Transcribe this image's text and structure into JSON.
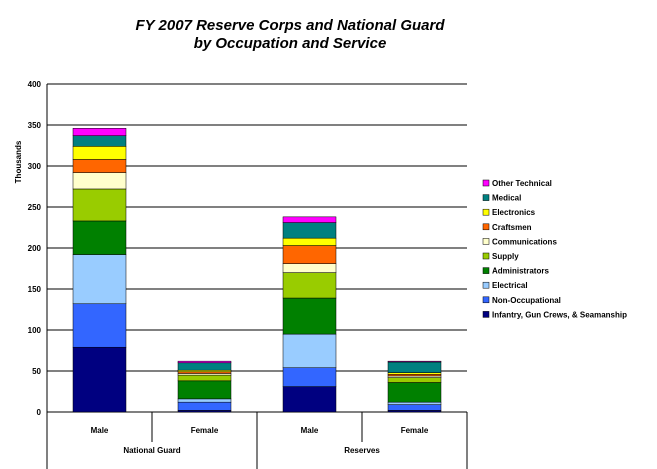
{
  "chart_data": {
    "type": "bar",
    "stacked": true,
    "title": [
      "FY 2007 Reserve Corps and National Guard",
      "by Occupation and Service"
    ],
    "ylabel": "Thousands",
    "xlabel": "",
    "ylim": [
      0,
      400
    ],
    "yticks": [
      0,
      50,
      100,
      150,
      200,
      250,
      300,
      350,
      400
    ],
    "grid": true,
    "legend_position": "right",
    "categories": [
      "Male",
      "Female",
      "Male",
      "Female"
    ],
    "groups": [
      {
        "label": "National Guard",
        "categories": [
          "Male",
          "Female"
        ]
      },
      {
        "label": "Reserves",
        "categories": [
          "Male",
          "Female"
        ]
      }
    ],
    "series": [
      {
        "name": "Infantry, Gun Crews, & Seamanship",
        "color": "#000080",
        "values": [
          79,
          2,
          31,
          2
        ]
      },
      {
        "name": "Non-Occupational",
        "color": "#3366FF",
        "values": [
          53,
          10,
          23,
          7
        ]
      },
      {
        "name": "Electrical",
        "color": "#99CCFF",
        "values": [
          60,
          4,
          41,
          3
        ]
      },
      {
        "name": "Administrators",
        "color": "#008000",
        "values": [
          41,
          22,
          44,
          24
        ]
      },
      {
        "name": "Supply",
        "color": "#99CC00",
        "values": [
          39,
          7,
          31,
          6
        ]
      },
      {
        "name": "Communications",
        "color": "#FFFFCC",
        "values": [
          20,
          2,
          11,
          2
        ]
      },
      {
        "name": "Craftsmen",
        "color": "#FF6600",
        "values": [
          16,
          2,
          22,
          2
        ]
      },
      {
        "name": "Electronics",
        "color": "#FFFF00",
        "values": [
          16,
          2,
          9,
          2
        ]
      },
      {
        "name": "Medical",
        "color": "#008080",
        "values": [
          13,
          9,
          19,
          13
        ]
      },
      {
        "name": "Other Technical",
        "color": "#FF00FF",
        "values": [
          9,
          2,
          7,
          1
        ]
      }
    ]
  }
}
